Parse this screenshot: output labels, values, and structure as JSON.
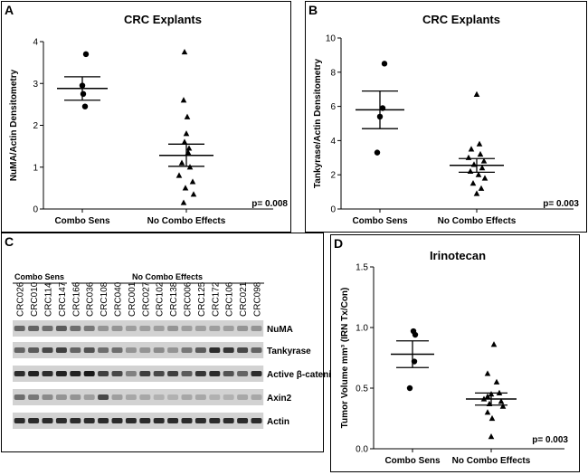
{
  "panels": {
    "A": {
      "label": "A",
      "chart_data": {
        "type": "scatter",
        "title": "CRC Explants",
        "ylabel": "NuMA/Actin Densitometry",
        "ylim": [
          0,
          4
        ],
        "yticks": [
          0,
          1,
          2,
          3,
          4
        ],
        "categories": [
          "Combo Sens",
          "No Combo Effects"
        ],
        "markers": [
          "circle",
          "triangle"
        ],
        "groups": [
          {
            "name": "Combo Sens",
            "points": [
              3.7,
              2.95,
              2.75,
              2.45
            ],
            "mean": 2.88,
            "sem_low": 2.6,
            "sem_high": 3.16
          },
          {
            "name": "No Combo Effects",
            "points": [
              3.75,
              2.6,
              2.2,
              1.8,
              1.6,
              1.45,
              1.35,
              1.1,
              1.0,
              0.8,
              0.65,
              0.5,
              0.35,
              0.15
            ],
            "mean": 1.28,
            "sem_low": 1.02,
            "sem_high": 1.55
          }
        ],
        "annotation": "p= 0.008"
      }
    },
    "B": {
      "label": "B",
      "chart_data": {
        "type": "scatter",
        "title": "CRC Explants",
        "ylabel": "Tankyrase/Actin Densitometry",
        "ylim": [
          0,
          10
        ],
        "yticks": [
          0,
          2,
          4,
          6,
          8,
          10
        ],
        "categories": [
          "Combo Sens",
          "No Combo Effects"
        ],
        "markers": [
          "circle",
          "triangle"
        ],
        "groups": [
          {
            "name": "Combo Sens",
            "points": [
              8.5,
              5.9,
              5.4,
              3.3
            ],
            "mean": 5.8,
            "sem_low": 4.7,
            "sem_high": 6.9
          },
          {
            "name": "No Combo Effects",
            "points": [
              6.7,
              3.8,
              3.5,
              3.2,
              3.0,
              2.8,
              2.6,
              2.4,
              2.2,
              2.0,
              1.8,
              1.5,
              1.2,
              0.9
            ],
            "mean": 2.55,
            "sem_low": 2.15,
            "sem_high": 2.95
          }
        ],
        "annotation": "p= 0.003"
      }
    },
    "C": {
      "label": "C",
      "groups": [
        "Combo Sens",
        "No Combo Effects"
      ],
      "samples": [
        "CRC026",
        "CRC010",
        "CRC114",
        "CRC147",
        "CRC166",
        "CRC036",
        "CRC108",
        "CRC040",
        "CRC001",
        "CRC027",
        "CRC102",
        "CRC138",
        "CRC006",
        "CRC125",
        "CRC172",
        "CRC106",
        "CRC021",
        "CRC098"
      ],
      "blots": [
        {
          "name": "NuMA",
          "intensity": [
            0.55,
            0.55,
            0.5,
            0.6,
            0.5,
            0.45,
            0.3,
            0.3,
            0.25,
            0.25,
            0.25,
            0.3,
            0.25,
            0.25,
            0.25,
            0.25,
            0.3,
            0.3
          ]
        },
        {
          "name": "Tankyrase",
          "intensity": [
            0.55,
            0.6,
            0.7,
            0.75,
            0.55,
            0.65,
            0.5,
            0.5,
            0.3,
            0.3,
            0.35,
            0.3,
            0.45,
            0.6,
            0.85,
            0.8,
            0.7,
            0.55
          ]
        },
        {
          "name": "Active β-catenin",
          "intensity": [
            0.85,
            0.9,
            0.85,
            0.9,
            0.9,
            0.95,
            0.75,
            0.7,
            0.4,
            0.75,
            0.7,
            0.75,
            0.6,
            0.8,
            0.85,
            0.65,
            0.55,
            0.85
          ]
        },
        {
          "name": "Axin2",
          "intensity": [
            0.5,
            0.45,
            0.35,
            0.3,
            0.3,
            0.25,
            0.7,
            0.25,
            0.2,
            0.2,
            0.15,
            0.15,
            0.2,
            0.2,
            0.15,
            0.15,
            0.2,
            0.2
          ]
        },
        {
          "name": "Actin",
          "intensity": [
            0.85,
            0.85,
            0.85,
            0.85,
            0.85,
            0.85,
            0.85,
            0.85,
            0.85,
            0.85,
            0.85,
            0.85,
            0.85,
            0.85,
            0.85,
            0.85,
            0.85,
            0.85
          ]
        }
      ]
    },
    "D": {
      "label": "D",
      "chart_data": {
        "type": "scatter",
        "title": "Irinotecan",
        "ylabel": "Tumor Volume mm³ (IRN Tx/Con)",
        "ylim": [
          0,
          1.5
        ],
        "yticks": [
          "0.0",
          "0.5",
          "1.0",
          "1.5"
        ],
        "categories": [
          "Combo Sens",
          "No Combo Effects"
        ],
        "markers": [
          "circle",
          "triangle"
        ],
        "groups": [
          {
            "name": "Combo Sens",
            "points": [
              0.97,
              0.94,
              0.72,
              0.5
            ],
            "mean": 0.78,
            "sem_low": 0.67,
            "sem_high": 0.89
          },
          {
            "name": "No Combo Effects",
            "points": [
              0.86,
              0.62,
              0.55,
              0.46,
              0.45,
              0.43,
              0.41,
              0.39,
              0.37,
              0.35,
              0.3,
              0.25,
              0.1
            ],
            "mean": 0.41,
            "sem_low": 0.36,
            "sem_high": 0.46
          }
        ],
        "annotation": "p= 0.003"
      }
    }
  }
}
